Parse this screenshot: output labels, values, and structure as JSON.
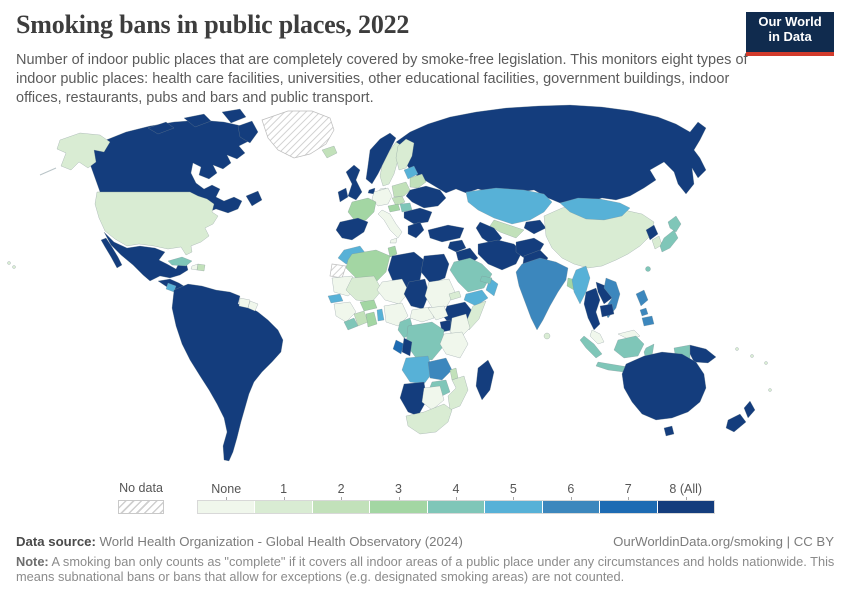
{
  "header": {
    "title": "Smoking bans in public places, 2022",
    "subtitle": "Number of indoor public places that are completely covered by smoke-free legislation. This monitors eight types of indoor public places: health care facilities, universities, other educational facilities, government buildings, indoor offices, restaurants, pubs and bars and public transport."
  },
  "logo": {
    "line1": "Our World",
    "line2": "in Data",
    "bg_color": "#102b4e",
    "accent_color": "#d23a2b"
  },
  "chart_data": {
    "type": "heatmap",
    "subtype": "world-choropleth",
    "title": "Smoking bans in public places, 2022",
    "unit": "number of indoor public place types completely covered (None to 8 (All))",
    "legend": {
      "no_data_label": "No data",
      "bins": [
        {
          "label": "None",
          "color": "#f0f7ec"
        },
        {
          "label": "1",
          "color": "#d9ecd3"
        },
        {
          "label": "2",
          "color": "#c2e1ba"
        },
        {
          "label": "3",
          "color": "#a3d6a3"
        },
        {
          "label": "4",
          "color": "#7fc6b8"
        },
        {
          "label": "5",
          "color": "#57b1d7"
        },
        {
          "label": "6",
          "color": "#3c87bd"
        },
        {
          "label": "7",
          "color": "#1d6bb3"
        },
        {
          "label": "8 (All)",
          "color": "#143d7d"
        }
      ]
    },
    "regions": {
      "canada": {
        "label": "Canada",
        "value": "8 (All)",
        "color": "#143d7d"
      },
      "greenland": {
        "label": "Greenland",
        "value": "No data",
        "pattern": "hatch"
      },
      "iceland": {
        "label": "Iceland",
        "value": "2",
        "color": "#c2e1ba"
      },
      "usa": {
        "label": "United States",
        "value": "1",
        "color": "#d9ecd3"
      },
      "mexico": {
        "label": "Mexico",
        "value": "8 (All)",
        "color": "#143d7d"
      },
      "central_america": {
        "label": "Central America",
        "value": "8 (All)",
        "color": "#143d7d"
      },
      "nicaragua": {
        "label": "Nicaragua",
        "value": "5",
        "color": "#57b1d7"
      },
      "cuba": {
        "label": "Cuba",
        "value": "4",
        "color": "#7fc6b8"
      },
      "haiti": {
        "label": "Haiti",
        "value": "None",
        "color": "#f0f7ec"
      },
      "dominican_republic": {
        "label": "Dominican Republic",
        "value": "2",
        "color": "#c2e1ba"
      },
      "south_america": {
        "label": "South America",
        "value": "8 (All)",
        "color": "#143d7d"
      },
      "guyana": {
        "label": "Guyana",
        "value": "None",
        "color": "#f0f7ec"
      },
      "french_guiana": {
        "label": "French Guiana",
        "value": "None",
        "color": "#f0f7ec"
      },
      "norway": {
        "label": "Norway",
        "value": "8 (All)",
        "color": "#143d7d"
      },
      "sweden": {
        "label": "Sweden",
        "value": "1",
        "color": "#d9ecd3"
      },
      "finland": {
        "label": "Finland",
        "value": "1",
        "color": "#d9ecd3"
      },
      "denmark": {
        "label": "Denmark",
        "value": "None",
        "color": "#f0f7ec"
      },
      "uk": {
        "label": "United Kingdom",
        "value": "8 (All)",
        "color": "#143d7d"
      },
      "ireland": {
        "label": "Ireland",
        "value": "8 (All)",
        "color": "#143d7d"
      },
      "netherlands": {
        "label": "Netherlands",
        "value": "8 (All)",
        "color": "#143d7d"
      },
      "germany": {
        "label": "Germany",
        "value": "None",
        "color": "#f0f7ec"
      },
      "poland": {
        "label": "Poland",
        "value": "2",
        "color": "#c2e1ba"
      },
      "baltics": {
        "label": "Baltic states",
        "value": "5",
        "color": "#57b1d7"
      },
      "belarus": {
        "label": "Belarus",
        "value": "2",
        "color": "#c2e1ba"
      },
      "ukraine": {
        "label": "Ukraine",
        "value": "8 (All)",
        "color": "#143d7d"
      },
      "czechia": {
        "label": "Czechia",
        "value": "2",
        "color": "#c2e1ba"
      },
      "austria": {
        "label": "Austria",
        "value": "3",
        "color": "#a3d6a3"
      },
      "hungary": {
        "label": "Hungary",
        "value": "4",
        "color": "#7fc6b8"
      },
      "france": {
        "label": "France",
        "value": "3",
        "color": "#a3d6a3"
      },
      "iberia": {
        "label": "Spain and Portugal",
        "value": "8 (All)",
        "color": "#143d7d"
      },
      "italy": {
        "label": "Italy",
        "value": "None",
        "color": "#f0f7ec"
      },
      "balkans": {
        "label": "Romania and Balkans",
        "value": "8 (All)",
        "color": "#143d7d"
      },
      "greece": {
        "label": "Greece",
        "value": "8 (All)",
        "color": "#143d7d"
      },
      "turkey": {
        "label": "Turkey",
        "value": "8 (All)",
        "color": "#143d7d"
      },
      "russia": {
        "label": "Russia",
        "value": "8 (All)",
        "color": "#143d7d"
      },
      "kazakhstan": {
        "label": "Kazakhstan",
        "value": "5",
        "color": "#57b1d7"
      },
      "uzbekistan": {
        "label": "Uzbekistan",
        "value": "2",
        "color": "#c2e1ba"
      },
      "turkmenistan": {
        "label": "Turkmenistan",
        "value": "8 (All)",
        "color": "#143d7d"
      },
      "kyrgyzstan_tajikistan": {
        "label": "Kyrgyzstan and Tajikistan",
        "value": "8 (All)",
        "color": "#143d7d"
      },
      "syria": {
        "label": "Syria",
        "value": "8 (All)",
        "color": "#143d7d"
      },
      "iraq": {
        "label": "Iraq",
        "value": "8 (All)",
        "color": "#143d7d"
      },
      "iran": {
        "label": "Iran",
        "value": "8 (All)",
        "color": "#143d7d"
      },
      "afghanistan": {
        "label": "Afghanistan",
        "value": "8 (All)",
        "color": "#143d7d"
      },
      "pakistan": {
        "label": "Pakistan",
        "value": "8 (All)",
        "color": "#143d7d"
      },
      "saudi_arabia": {
        "label": "Saudi Arabia",
        "value": "4",
        "color": "#7fc6b8"
      },
      "yemen": {
        "label": "Yemen",
        "value": "5",
        "color": "#57b1d7"
      },
      "oman": {
        "label": "Oman",
        "value": "5",
        "color": "#57b1d7"
      },
      "uae": {
        "label": "United Arab Emirates",
        "value": "4",
        "color": "#7fc6b8"
      },
      "india": {
        "label": "India",
        "value": "6",
        "color": "#3c87bd"
      },
      "bangladesh": {
        "label": "Bangladesh",
        "value": "3",
        "color": "#a3d6a3"
      },
      "sri_lanka": {
        "label": "Sri Lanka",
        "value": "1",
        "color": "#d9ecd3"
      },
      "myanmar": {
        "label": "Myanmar",
        "value": "5",
        "color": "#57b1d7"
      },
      "thailand": {
        "label": "Thailand",
        "value": "8 (All)",
        "color": "#143d7d"
      },
      "laos": {
        "label": "Laos",
        "value": "8 (All)",
        "color": "#143d7d"
      },
      "vietnam": {
        "label": "Vietnam",
        "value": "6",
        "color": "#3c87bd"
      },
      "cambodia": {
        "label": "Cambodia",
        "value": "8 (All)",
        "color": "#143d7d"
      },
      "malaysia": {
        "label": "Malaysia",
        "value": "None",
        "color": "#f0f7ec"
      },
      "indonesia": {
        "label": "Indonesia",
        "value": "4",
        "color": "#7fc6b8"
      },
      "papua_new_guinea": {
        "label": "Papua New Guinea",
        "value": "8 (All)",
        "color": "#143d7d"
      },
      "philippines": {
        "label": "Philippines",
        "value": "6",
        "color": "#3c87bd"
      },
      "china": {
        "label": "China",
        "value": "1",
        "color": "#d9ecd3"
      },
      "mongolia": {
        "label": "Mongolia",
        "value": "5",
        "color": "#57b1d7"
      },
      "north_korea": {
        "label": "North Korea",
        "value": "8 (All)",
        "color": "#143d7d"
      },
      "south_korea": {
        "label": "South Korea",
        "value": "1",
        "color": "#d9ecd3"
      },
      "japan": {
        "label": "Japan",
        "value": "4",
        "color": "#7fc6b8"
      },
      "taiwan": {
        "label": "Taiwan",
        "value": "4",
        "color": "#7fc6b8"
      },
      "morocco": {
        "label": "Morocco",
        "value": "5",
        "color": "#57b1d7"
      },
      "western_sahara": {
        "label": "Western Sahara",
        "value": "No data",
        "pattern": "hatch"
      },
      "algeria": {
        "label": "Algeria",
        "value": "3",
        "color": "#a3d6a3"
      },
      "tunisia": {
        "label": "Tunisia",
        "value": "3",
        "color": "#a3d6a3"
      },
      "libya": {
        "label": "Libya",
        "value": "8 (All)",
        "color": "#143d7d"
      },
      "egypt": {
        "label": "Egypt",
        "value": "8 (All)",
        "color": "#143d7d"
      },
      "mauritania": {
        "label": "Mauritania",
        "value": "None",
        "color": "#f0f7ec"
      },
      "senegal": {
        "label": "Senegal",
        "value": "5",
        "color": "#57b1d7"
      },
      "mali": {
        "label": "Mali",
        "value": "1",
        "color": "#d9ecd3"
      },
      "niger": {
        "label": "Niger",
        "value": "None",
        "color": "#f0f7ec"
      },
      "chad": {
        "label": "Chad",
        "value": "8 (All)",
        "color": "#143d7d"
      },
      "sudan": {
        "label": "Sudan",
        "value": "None",
        "color": "#f0f7ec"
      },
      "eritrea": {
        "label": "Eritrea",
        "value": "1",
        "color": "#d9ecd3"
      },
      "ethiopia": {
        "label": "Ethiopia",
        "value": "8 (All)",
        "color": "#143d7d"
      },
      "somalia": {
        "label": "Somalia",
        "value": "1",
        "color": "#d9ecd3"
      },
      "guinea": {
        "label": "Guinea region",
        "value": "None",
        "color": "#f0f7ec"
      },
      "sierra_leone_liberia": {
        "label": "Sierra Leone and Liberia",
        "value": "4",
        "color": "#7fc6b8"
      },
      "cote_divoire": {
        "label": "Cote d'Ivoire",
        "value": "2",
        "color": "#c2e1ba"
      },
      "ghana": {
        "label": "Ghana",
        "value": "3",
        "color": "#a3d6a3"
      },
      "burkina_faso": {
        "label": "Burkina Faso",
        "value": "3",
        "color": "#a3d6a3"
      },
      "benin_togo": {
        "label": "Benin and Togo",
        "value": "5",
        "color": "#57b1d7"
      },
      "nigeria": {
        "label": "Nigeria",
        "value": "None",
        "color": "#f0f7ec"
      },
      "cameroon": {
        "label": "Cameroon",
        "value": "4",
        "color": "#7fc6b8"
      },
      "central_african_republic": {
        "label": "Central African Republic",
        "value": "None",
        "color": "#f0f7ec"
      },
      "south_sudan": {
        "label": "South Sudan",
        "value": "None",
        "color": "#f0f7ec"
      },
      "uganda": {
        "label": "Uganda",
        "value": "8 (All)",
        "color": "#143d7d"
      },
      "kenya": {
        "label": "Kenya",
        "value": "None",
        "color": "#f0f7ec"
      },
      "drc": {
        "label": "Democratic Republic of Congo",
        "value": "4",
        "color": "#7fc6b8"
      },
      "gabon": {
        "label": "Gabon",
        "value": "7",
        "color": "#1d6bb3"
      },
      "congo": {
        "label": "Congo",
        "value": "8 (All)",
        "color": "#143d7d"
      },
      "tanzania": {
        "label": "Tanzania",
        "value": "None",
        "color": "#f0f7ec"
      },
      "angola": {
        "label": "Angola",
        "value": "5",
        "color": "#57b1d7"
      },
      "zambia": {
        "label": "Zambia",
        "value": "6",
        "color": "#3c87bd"
      },
      "malawi": {
        "label": "Malawi",
        "value": "2",
        "color": "#c2e1ba"
      },
      "mozambique": {
        "label": "Mozambique",
        "value": "1",
        "color": "#d9ecd3"
      },
      "zimbabwe": {
        "label": "Zimbabwe",
        "value": "4",
        "color": "#7fc6b8"
      },
      "namibia": {
        "label": "Namibia",
        "value": "8 (All)",
        "color": "#143d7d"
      },
      "botswana": {
        "label": "Botswana",
        "value": "None",
        "color": "#f0f7ec"
      },
      "south_africa": {
        "label": "South Africa",
        "value": "1",
        "color": "#d9ecd3"
      },
      "madagascar": {
        "label": "Madagascar",
        "value": "8 (All)",
        "color": "#143d7d"
      },
      "australia": {
        "label": "Australia",
        "value": "8 (All)",
        "color": "#143d7d"
      },
      "new_zealand": {
        "label": "New Zealand",
        "value": "8 (All)",
        "color": "#143d7d"
      },
      "pacific_islands": {
        "label": "Pacific islands",
        "value": "1",
        "color": "#d9ecd3"
      }
    }
  },
  "footer": {
    "source_label": "Data source:",
    "source_text": " World Health Organization - Global Health Observatory (2024)",
    "rights_text": "OurWorldinData.org/smoking | CC BY",
    "note_label": "Note:",
    "note_text": " A smoking ban only counts as \"complete\" if it covers all indoor areas of a public place under any circumstances and holds nationwide. This means subnational bans or bans that allow for exceptions (e.g. designated smoking areas) are not counted."
  }
}
